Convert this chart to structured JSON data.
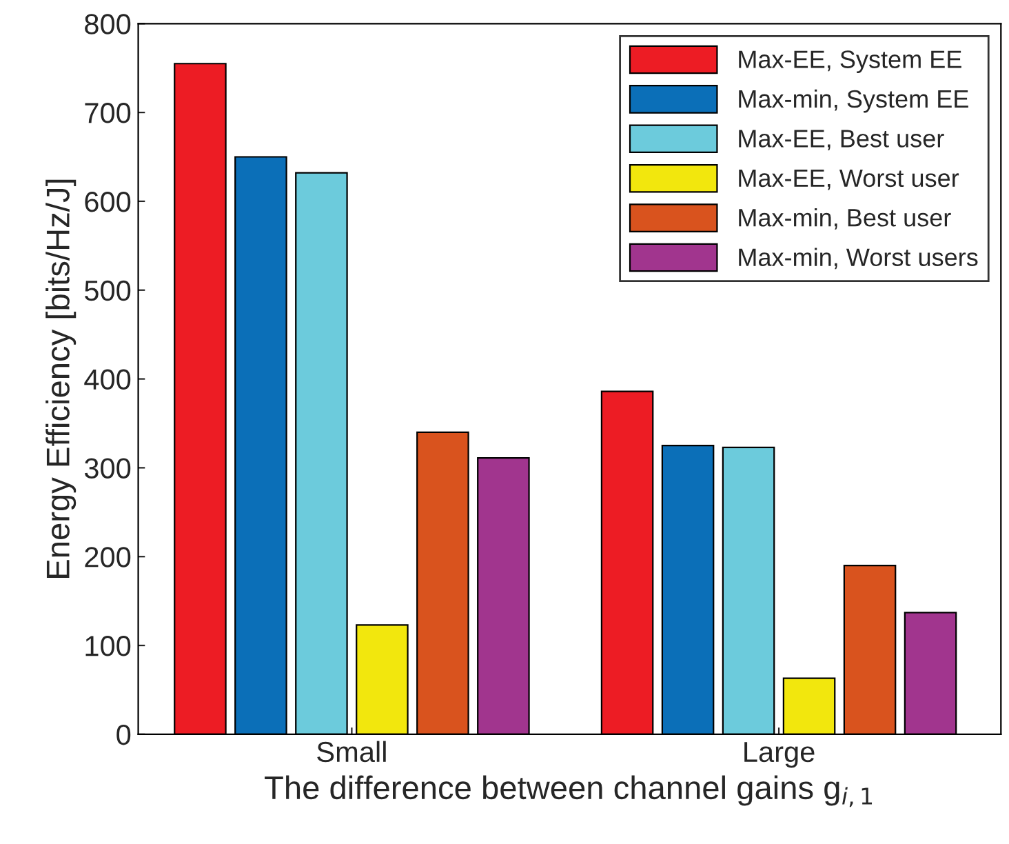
{
  "chart_data": {
    "type": "bar",
    "xlabel": "The difference between channel gains g$_{i,1}$",
    "ylabel": "Energy Efficiency [bits/Hz/J]",
    "categories": [
      "Small",
      "Large"
    ],
    "series": [
      {
        "name": "Max-EE, System EE",
        "color": "#ed1c24",
        "values": [
          755,
          386
        ]
      },
      {
        "name": "Max-min, System EE",
        "color": "#0b6fb8",
        "values": [
          650,
          325
        ]
      },
      {
        "name": "Max-EE, Best user",
        "color": "#6ccbdc",
        "values": [
          632,
          323
        ]
      },
      {
        "name": "Max-EE, Worst user",
        "color": "#f2e70d",
        "values": [
          123,
          63
        ]
      },
      {
        "name": "Max-min, Best user",
        "color": "#d9531e",
        "values": [
          340,
          190
        ]
      },
      {
        "name": "Max-min, Worst users",
        "color": "#a1358e",
        "values": [
          311,
          137
        ]
      }
    ],
    "ylim": [
      0,
      800
    ],
    "yticks": [
      0,
      100,
      200,
      300,
      400,
      500,
      600,
      700,
      800
    ],
    "grid": false,
    "legend": "top right"
  }
}
